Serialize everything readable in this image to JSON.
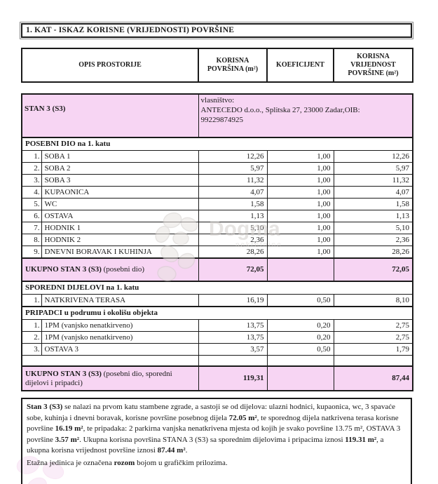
{
  "colors": {
    "pink": "#f7d5f3",
    "ink": "#1a1a1a",
    "wm": "#d3cfcc"
  },
  "page": {
    "title": "1. KAT - ISKAZ KORISNE (VRIJEDNOSTI) POVRŠINE"
  },
  "header": {
    "opis": "OPIS PROSTORIJE",
    "korisna": "KORISNA POVRŠINA (m²)",
    "koeficijent": "KOEFICIJENT",
    "vrijednost": "KORISNA VRIJEDNOST POVRŠINE (m²)"
  },
  "stan": {
    "label": "STAN 3 (S3)",
    "ownership_line1": "vlasništvo:",
    "ownership_line2": "ANTECEDO d.o.o., Splitska 27, 23000 Zadar,OIB:",
    "ownership_line3": "99229874925"
  },
  "posebni": {
    "section": "POSEBNI DIO na 1. katu",
    "rows": [
      {
        "num": "1.",
        "label": "SOBA 1",
        "area": "12,26",
        "coef": "1,00",
        "value": "12,26"
      },
      {
        "num": "2.",
        "label": "SOBA 2",
        "area": "5,97",
        "coef": "1,00",
        "value": "5,97"
      },
      {
        "num": "3.",
        "label": "SOBA 3",
        "area": "11,32",
        "coef": "1,00",
        "value": "11,32"
      },
      {
        "num": "4.",
        "label": "KUPAONICA",
        "area": "4,07",
        "coef": "1,00",
        "value": "4,07"
      },
      {
        "num": "5.",
        "label": "WC",
        "area": "1,58",
        "coef": "1,00",
        "value": "1,58"
      },
      {
        "num": "6.",
        "label": "OSTAVA",
        "area": "1,13",
        "coef": "1,00",
        "value": "1,13"
      },
      {
        "num": "7.",
        "label": "HODNIK 1",
        "area": "5,10",
        "coef": "1,00",
        "value": "5,10"
      },
      {
        "num": "8.",
        "label": "HODNIK 2",
        "area": "2,36",
        "coef": "1,00",
        "value": "2,36"
      },
      {
        "num": "9.",
        "label": "DNEVNI BORAVAK I KUHINJA",
        "area": "28,26",
        "coef": "1,00",
        "value": "28,26"
      }
    ],
    "total": {
      "label_bold": "UKUPNO STAN 3 (S3)",
      "label_normal": " (posebni dio)",
      "area": "72,05",
      "coef": "",
      "value": "72,05"
    }
  },
  "sporedni": {
    "section": "SPOREDNI DIJELOVI na 1. katu",
    "rows": [
      {
        "num": "1.",
        "label": "NATKRIVENA TERASA",
        "area": "16,19",
        "coef": "0,50",
        "value": "8,10"
      }
    ]
  },
  "pripadci": {
    "section": "PRIPADCI u podrumu i okolišu objekta",
    "rows": [
      {
        "num": "1.",
        "label": "1PM (vanjsko nenatkirveno)",
        "area": "13,75",
        "coef": "0,20",
        "value": "2,75"
      },
      {
        "num": "2.",
        "label": "1PM (vanjsko nenatkirveno)",
        "area": "13,75",
        "coef": "0,20",
        "value": "2,75"
      },
      {
        "num": "3.",
        "label": "OSTAVA 3",
        "area": "3,57",
        "coef": "0,50",
        "value": "1,79"
      }
    ]
  },
  "grand_total": {
    "label_bold": "UKUPNO STAN 3 (S3)",
    "label_normal": " (posebni dio, sporedni dijelovi i pripadci)",
    "area": "119,31",
    "coef": "",
    "value": "87,44"
  },
  "footer": {
    "paragraph_segments": [
      {
        "t": "Stan 3 (S3)",
        "b": true
      },
      {
        "t": " se nalazi na prvom katu stambene zgrade, a sastoji se od dijelova:  ulazni hodnici, kupaonica, wc, 3 spavaće sobe, kuhinja i dnevni boravak, korisne površine posebnog dijela  ",
        "b": false
      },
      {
        "t": "72.05 m²",
        "b": true
      },
      {
        "t": ", te sporednog dijela natkrivena terasa korisne površine  ",
        "b": false
      },
      {
        "t": "16.19 m²",
        "b": true
      },
      {
        "t": ", te pripadaka:  2 parkirna vanjska nenatkrivena mjesta od kojih je svako površine 13.75 m², OSTAVA 3 površine ",
        "b": false
      },
      {
        "t": "3.57 m²",
        "b": true
      },
      {
        "t": ". Ukupna korisna površina STANA 3 (S3) sa sporednim dijelovima i pripacima iznosi ",
        "b": false
      },
      {
        "t": "119.31 m²",
        "b": true
      },
      {
        "t": ", a ukupna korisna vrijednost površine iznosi  ",
        "b": false
      },
      {
        "t": "87.44 m²",
        "b": true
      },
      {
        "t": ".",
        "b": false
      }
    ],
    "note_segments": [
      {
        "t": "Etažna jedinica je označena ",
        "b": false
      },
      {
        "t": "rozom",
        "b": true
      },
      {
        "t": " bojom u grafičkim prilozima.",
        "b": false
      }
    ]
  },
  "watermark": {
    "text": "Dogma",
    "subtext": "nekretnine"
  }
}
